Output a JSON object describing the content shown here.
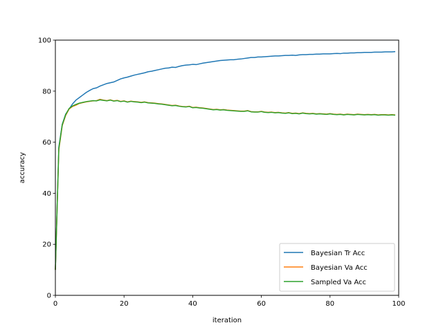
{
  "chart_data": {
    "type": "line",
    "title": "",
    "xlabel": "iteration",
    "ylabel": "accuracy",
    "xlim": [
      0,
      100
    ],
    "ylim": [
      0,
      100
    ],
    "xticks": [
      0,
      20,
      40,
      60,
      80,
      100
    ],
    "yticks": [
      0,
      20,
      40,
      60,
      80,
      100
    ],
    "grid": false,
    "legend_position": "lower-right",
    "series": [
      {
        "name": "Bayesian Tr Acc",
        "color": "#1f77b4",
        "x": [
          0,
          1,
          2,
          3,
          4,
          5,
          6,
          7,
          8,
          9,
          10,
          11,
          12,
          13,
          14,
          15,
          16,
          17,
          18,
          19,
          20,
          21,
          22,
          23,
          24,
          25,
          26,
          27,
          28,
          29,
          30,
          31,
          32,
          33,
          34,
          35,
          36,
          37,
          38,
          39,
          40,
          41,
          42,
          43,
          44,
          45,
          46,
          47,
          48,
          49,
          50,
          51,
          52,
          53,
          54,
          55,
          56,
          57,
          58,
          59,
          60,
          61,
          62,
          63,
          64,
          65,
          66,
          67,
          68,
          69,
          70,
          71,
          72,
          73,
          74,
          75,
          76,
          77,
          78,
          79,
          80,
          81,
          82,
          83,
          84,
          85,
          86,
          87,
          88,
          89,
          90,
          91,
          92,
          93,
          94,
          95,
          96,
          97,
          98,
          99
        ],
        "y": [
          10,
          58,
          67,
          71,
          73,
          75,
          76.5,
          77.5,
          78.5,
          79.5,
          80.3,
          81,
          81.3,
          82,
          82.5,
          83,
          83.3,
          83.6,
          84.2,
          84.8,
          85.2,
          85.5,
          85.9,
          86.3,
          86.6,
          86.9,
          87.2,
          87.6,
          87.8,
          88.1,
          88.4,
          88.7,
          89,
          89.1,
          89.4,
          89.3,
          89.7,
          90,
          90.2,
          90.3,
          90.5,
          90.4,
          90.7,
          91,
          91.2,
          91.4,
          91.6,
          91.8,
          92,
          92.1,
          92.2,
          92.3,
          92.3,
          92.5,
          92.6,
          92.8,
          93,
          93.2,
          93.2,
          93.4,
          93.4,
          93.5,
          93.6,
          93.7,
          93.8,
          93.8,
          93.9,
          94,
          94,
          94.1,
          94,
          94.2,
          94.3,
          94.3,
          94.4,
          94.4,
          94.5,
          94.5,
          94.6,
          94.6,
          94.6,
          94.7,
          94.8,
          94.7,
          94.9,
          94.9,
          95,
          95,
          95.1,
          95.1,
          95.2,
          95.2,
          95.2,
          95.3,
          95.3,
          95.3,
          95.4,
          95.4,
          95.4,
          95.5
        ]
      },
      {
        "name": "Bayesian Va Acc",
        "color": "#ff7f0e",
        "x": [
          0,
          1,
          2,
          3,
          4,
          5,
          6,
          7,
          8,
          9,
          10,
          11,
          12,
          13,
          14,
          15,
          16,
          17,
          18,
          19,
          20,
          21,
          22,
          23,
          24,
          25,
          26,
          27,
          28,
          29,
          30,
          31,
          32,
          33,
          34,
          35,
          36,
          37,
          38,
          39,
          40,
          41,
          42,
          43,
          44,
          45,
          46,
          47,
          48,
          49,
          50,
          51,
          52,
          53,
          54,
          55,
          56,
          57,
          58,
          59,
          60,
          61,
          62,
          63,
          64,
          65,
          66,
          67,
          68,
          69,
          70,
          71,
          72,
          73,
          74,
          75,
          76,
          77,
          78,
          79,
          80,
          81,
          82,
          83,
          84,
          85,
          86,
          87,
          88,
          89,
          90,
          91,
          92,
          93,
          94,
          95,
          96,
          97,
          98,
          99
        ],
        "y": [
          10,
          57,
          66.5,
          70.5,
          73,
          74,
          74.5,
          75.2,
          75.5,
          75.8,
          76,
          76.2,
          76.3,
          76.8,
          76.5,
          76.3,
          76.6,
          76.2,
          76.4,
          76,
          76.2,
          75.8,
          76.1,
          75.9,
          75.8,
          75.6,
          75.8,
          75.5,
          75.4,
          75.3,
          75.1,
          75,
          74.8,
          74.6,
          74.4,
          74.5,
          74.2,
          74,
          73.9,
          74.1,
          73.6,
          73.7,
          73.5,
          73.4,
          73.2,
          73,
          72.8,
          72.9,
          72.7,
          72.8,
          72.6,
          72.5,
          72.4,
          72.3,
          72.2,
          72.2,
          72.4,
          72,
          71.9,
          71.9,
          72.1,
          71.8,
          71.7,
          71.8,
          71.6,
          71.7,
          71.5,
          71.4,
          71.6,
          71.3,
          71.4,
          71.2,
          71.5,
          71.3,
          71.2,
          71.3,
          71.1,
          71.2,
          71.1,
          71,
          71.2,
          71,
          70.9,
          71,
          70.8,
          71,
          70.9,
          70.8,
          71,
          70.9,
          70.8,
          70.9,
          70.8,
          70.9,
          70.7,
          70.8,
          70.8,
          70.7,
          70.8,
          70.7
        ]
      },
      {
        "name": "Sampled Va Acc",
        "color": "#2ca02c",
        "x": [
          0,
          1,
          2,
          3,
          4,
          5,
          6,
          7,
          8,
          9,
          10,
          11,
          12,
          13,
          14,
          15,
          16,
          17,
          18,
          19,
          20,
          21,
          22,
          23,
          24,
          25,
          26,
          27,
          28,
          29,
          30,
          31,
          32,
          33,
          34,
          35,
          36,
          37,
          38,
          39,
          40,
          41,
          42,
          43,
          44,
          45,
          46,
          47,
          48,
          49,
          50,
          51,
          52,
          53,
          54,
          55,
          56,
          57,
          58,
          59,
          60,
          61,
          62,
          63,
          64,
          65,
          66,
          67,
          68,
          69,
          70,
          71,
          72,
          73,
          74,
          75,
          76,
          77,
          78,
          79,
          80,
          81,
          82,
          83,
          84,
          85,
          86,
          87,
          88,
          89,
          90,
          91,
          92,
          93,
          94,
          95,
          96,
          97,
          98,
          99
        ],
        "y": [
          10,
          57.5,
          66.8,
          70.8,
          73.2,
          74.2,
          74.8,
          75.3,
          75.6,
          75.9,
          76.1,
          76.3,
          76.2,
          76.6,
          76.4,
          76.2,
          76.5,
          76.1,
          76.3,
          75.9,
          76.1,
          75.7,
          76,
          75.8,
          75.7,
          75.5,
          75.7,
          75.4,
          75.3,
          75.2,
          75,
          74.9,
          74.7,
          74.5,
          74.3,
          74.4,
          74.1,
          73.9,
          73.8,
          74,
          73.5,
          73.6,
          73.4,
          73.3,
          73.1,
          72.9,
          72.7,
          72.8,
          72.6,
          72.7,
          72.5,
          72.4,
          72.3,
          72.2,
          72.1,
          72.1,
          72.3,
          71.9,
          71.8,
          71.8,
          72,
          71.7,
          71.6,
          71.7,
          71.5,
          71.6,
          71.4,
          71.3,
          71.5,
          71.2,
          71.3,
          71.1,
          71.4,
          71.2,
          71.1,
          71.2,
          71,
          71.1,
          71,
          70.9,
          71.1,
          70.9,
          70.8,
          70.9,
          70.7,
          70.9,
          70.8,
          70.7,
          70.9,
          70.8,
          70.7,
          70.8,
          70.7,
          70.8,
          70.6,
          70.7,
          70.7,
          70.6,
          70.7,
          70.6
        ]
      }
    ]
  }
}
